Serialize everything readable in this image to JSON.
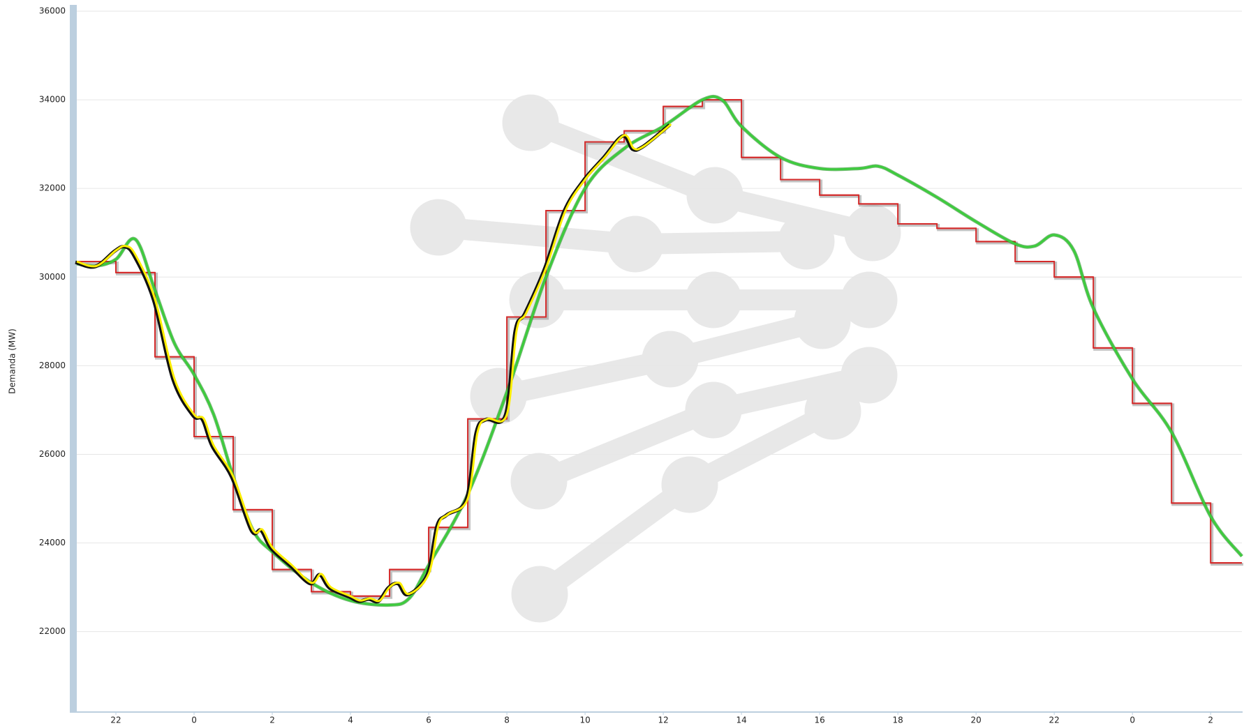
{
  "chart_data": {
    "type": "line",
    "y_label": "Demanda (MW)",
    "xlim": [
      -3,
      26.8
    ],
    "ylim": [
      20200,
      36000
    ],
    "xticks": [
      {
        "value": -2,
        "label": "22"
      },
      0,
      2,
      4,
      6,
      8,
      10,
      12,
      14,
      16,
      18,
      20,
      22,
      {
        "value": 24,
        "label": "0"
      },
      {
        "value": 26,
        "label": "2"
      }
    ],
    "yticks": [
      22000,
      24000,
      26000,
      28000,
      30000,
      32000,
      34000,
      36000
    ],
    "grid": true,
    "series": [
      {
        "style": "step",
        "color": "#d42a2a",
        "x": [
          -3,
          -2,
          -1,
          0,
          1,
          2,
          3,
          4,
          5,
          6,
          7,
          8,
          9,
          10,
          11,
          12,
          13,
          14,
          15,
          16,
          17,
          18,
          19,
          20,
          21,
          22,
          23,
          24,
          25,
          26
        ],
        "values": [
          30350,
          30100,
          28200,
          26400,
          24750,
          23400,
          22900,
          22800,
          23400,
          24350,
          26800,
          29100,
          31500,
          33050,
          33300,
          33850,
          34000,
          32700,
          32200,
          31850,
          31650,
          31200,
          31100,
          30800,
          30350,
          30000,
          28400,
          27150,
          24900,
          23550
        ]
      },
      {
        "style": "smooth",
        "color": "#3dcc3d",
        "x": [
          -3,
          -2.5,
          -2,
          -1.5,
          -1,
          -0.5,
          0,
          0.5,
          1,
          1.5,
          2,
          3,
          4,
          5,
          5.5,
          6,
          7,
          8,
          9,
          10,
          11,
          12,
          13,
          13.5,
          14,
          15,
          16,
          17,
          17.5,
          18,
          19,
          20,
          21,
          21.5,
          22,
          22.5,
          23,
          24,
          25,
          26,
          26.8
        ],
        "values": [
          30300,
          30250,
          30400,
          30850,
          29700,
          28500,
          27800,
          26900,
          25500,
          24300,
          23800,
          23100,
          22700,
          22600,
          22750,
          23500,
          25100,
          27400,
          30000,
          32000,
          32900,
          33400,
          34000,
          34000,
          33400,
          32700,
          32450,
          32450,
          32500,
          32300,
          31800,
          31250,
          30750,
          30700,
          30950,
          30600,
          29300,
          27700,
          26500,
          24600,
          23700
        ]
      },
      {
        "style": "shadowed",
        "color": "#ffee00",
        "x": [
          -3,
          -2.5,
          -2,
          -1.75,
          -1.5,
          -1,
          -0.5,
          0,
          0.25,
          0.5,
          1,
          1.5,
          1.75,
          2,
          2.5,
          3,
          3.25,
          3.5,
          4,
          4.25,
          4.5,
          4.75,
          5,
          5.25,
          5.5,
          6,
          6.25,
          6.5,
          7,
          7.25,
          7.5,
          8,
          8.25,
          8.5,
          9,
          9.5,
          10,
          10.5,
          11,
          11.25,
          11.5,
          12,
          12.2
        ],
        "values": [
          30350,
          30250,
          30600,
          30700,
          30500,
          29500,
          27700,
          26900,
          26800,
          26200,
          25500,
          24300,
          24300,
          23900,
          23500,
          23100,
          23300,
          23000,
          22800,
          22700,
          22750,
          22700,
          23000,
          23100,
          22850,
          23300,
          24400,
          24650,
          25000,
          26500,
          26800,
          26900,
          28800,
          29200,
          30200,
          31500,
          32200,
          32700,
          33200,
          32900,
          32950,
          33300,
          33450
        ]
      }
    ]
  }
}
